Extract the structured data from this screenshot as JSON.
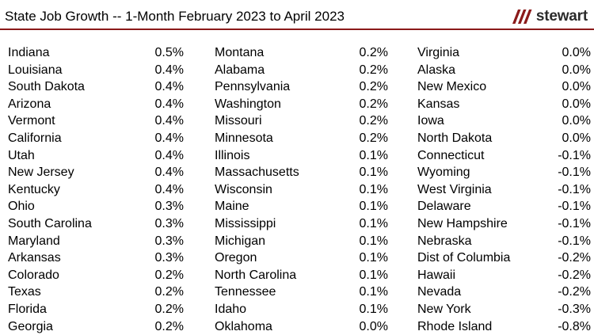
{
  "header": {
    "title": "State Job Growth -- 1-Month February 2023 to April 2023",
    "logo_text": "stewart",
    "rule_color": "#8b1a1a"
  },
  "columns": [
    {
      "rows": [
        {
          "state": "Indiana",
          "value": "0.5%"
        },
        {
          "state": "Louisiana",
          "value": "0.4%"
        },
        {
          "state": "South Dakota",
          "value": "0.4%"
        },
        {
          "state": "Arizona",
          "value": "0.4%"
        },
        {
          "state": "Vermont",
          "value": "0.4%"
        },
        {
          "state": "California",
          "value": "0.4%"
        },
        {
          "state": "Utah",
          "value": "0.4%"
        },
        {
          "state": "New Jersey",
          "value": "0.4%"
        },
        {
          "state": "Kentucky",
          "value": "0.4%"
        },
        {
          "state": "Ohio",
          "value": "0.3%"
        },
        {
          "state": "South Carolina",
          "value": "0.3%"
        },
        {
          "state": "Maryland",
          "value": "0.3%"
        },
        {
          "state": "Arkansas",
          "value": "0.3%"
        },
        {
          "state": "Colorado",
          "value": "0.2%"
        },
        {
          "state": "Texas",
          "value": "0.2%"
        },
        {
          "state": "Florida",
          "value": "0.2%"
        },
        {
          "state": "Georgia",
          "value": "0.2%"
        }
      ]
    },
    {
      "rows": [
        {
          "state": "Montana",
          "value": "0.2%"
        },
        {
          "state": "Alabama",
          "value": "0.2%"
        },
        {
          "state": "Pennsylvania",
          "value": "0.2%"
        },
        {
          "state": "Washington",
          "value": "0.2%"
        },
        {
          "state": "Missouri",
          "value": "0.2%"
        },
        {
          "state": "Minnesota",
          "value": "0.2%"
        },
        {
          "state": "Illinois",
          "value": "0.1%"
        },
        {
          "state": "Massachusetts",
          "value": "0.1%"
        },
        {
          "state": "Wisconsin",
          "value": "0.1%"
        },
        {
          "state": "Maine",
          "value": "0.1%"
        },
        {
          "state": "Mississippi",
          "value": "0.1%"
        },
        {
          "state": "Michigan",
          "value": "0.1%"
        },
        {
          "state": "Oregon",
          "value": "0.1%"
        },
        {
          "state": "North Carolina",
          "value": "0.1%"
        },
        {
          "state": "Tennessee",
          "value": "0.1%"
        },
        {
          "state": "Idaho",
          "value": "0.1%"
        },
        {
          "state": "Oklahoma",
          "value": "0.0%"
        }
      ]
    },
    {
      "rows": [
        {
          "state": "Virginia",
          "value": "0.0%"
        },
        {
          "state": "Alaska",
          "value": "0.0%"
        },
        {
          "state": "New Mexico",
          "value": "0.0%"
        },
        {
          "state": "Kansas",
          "value": "0.0%"
        },
        {
          "state": "Iowa",
          "value": "0.0%"
        },
        {
          "state": "North Dakota",
          "value": "0.0%"
        },
        {
          "state": "Connecticut",
          "value": "-0.1%"
        },
        {
          "state": "Wyoming",
          "value": "-0.1%"
        },
        {
          "state": "West Virginia",
          "value": "-0.1%"
        },
        {
          "state": "Delaware",
          "value": "-0.1%"
        },
        {
          "state": "New Hampshire",
          "value": "-0.1%"
        },
        {
          "state": "Nebraska",
          "value": "-0.1%"
        },
        {
          "state": "Dist of Columbia",
          "value": "-0.2%"
        },
        {
          "state": "Hawaii",
          "value": "-0.2%"
        },
        {
          "state": "Nevada",
          "value": "-0.2%"
        },
        {
          "state": "New York",
          "value": "-0.3%"
        },
        {
          "state": "Rhode Island",
          "value": "-0.8%"
        }
      ]
    }
  ]
}
